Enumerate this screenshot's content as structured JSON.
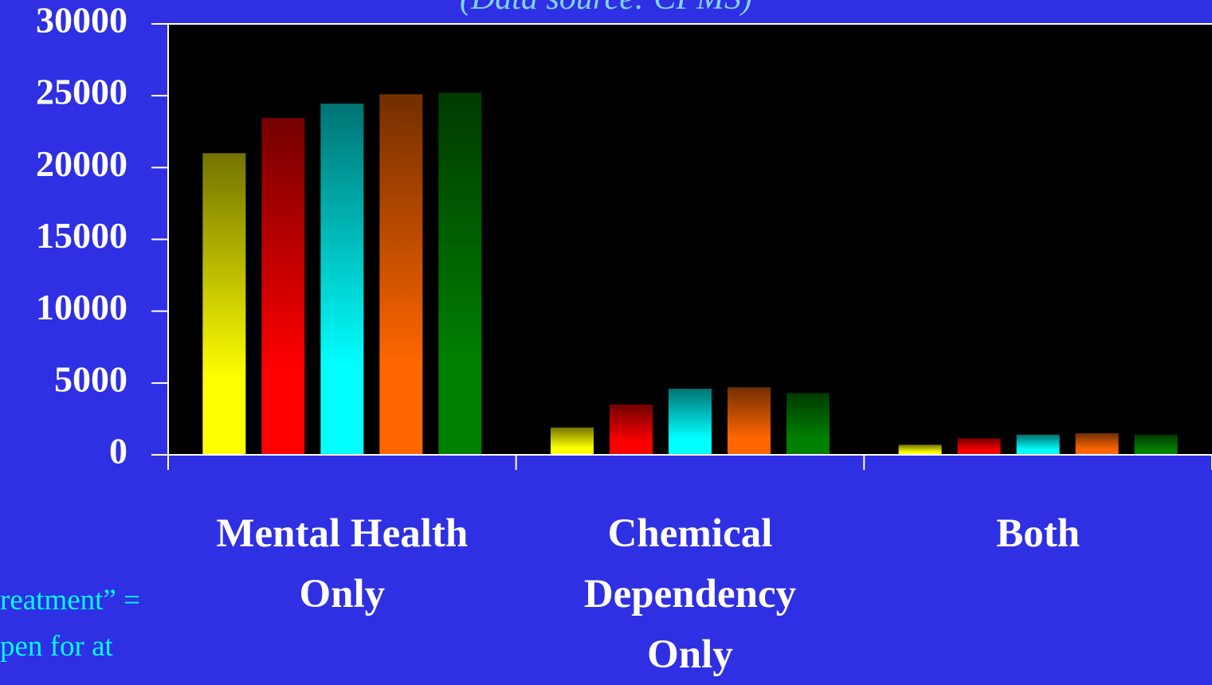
{
  "chart_data": {
    "type": "bar",
    "title": "(Data source: CPMS)",
    "categories": [
      "Mental Health\nOnly",
      "Chemical\nDependency\nOnly",
      "Both"
    ],
    "series": [
      {
        "color": "#ffff00",
        "values": [
          21000,
          1900,
          700
        ]
      },
      {
        "color": "#ff0000",
        "values": [
          23450,
          3500,
          1150
        ]
      },
      {
        "color": "#00ffff",
        "values": [
          24450,
          4600,
          1400
        ]
      },
      {
        "color": "#ff6600",
        "values": [
          25100,
          4700,
          1500
        ]
      },
      {
        "color": "#008000",
        "values": [
          25200,
          4300,
          1400
        ]
      }
    ],
    "ylim": [
      0,
      30000
    ],
    "yticks": [
      0,
      5000,
      10000,
      15000,
      20000,
      25000,
      30000
    ],
    "notes": [
      "reatment” =",
      "pen for at"
    ]
  }
}
